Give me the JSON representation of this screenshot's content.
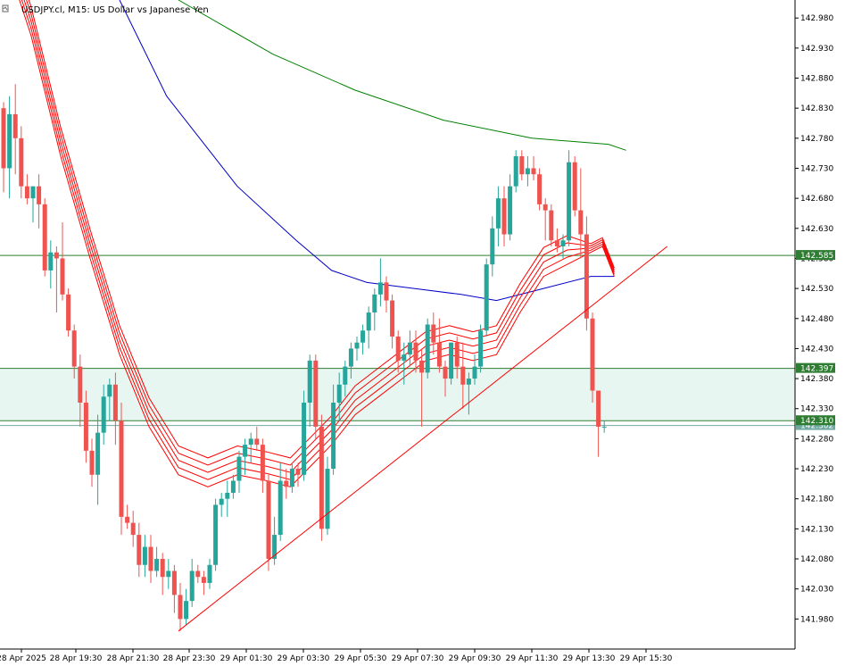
{
  "header": {
    "symbol_label": "USDJPY.cl, M15:",
    "description": "US Dollar vs Japanese Yen"
  },
  "colors": {
    "background": "#ffffff",
    "bull_candle": "#26a69a",
    "bear_candle": "#ef5350",
    "ribbon": "#ff0000",
    "ma_blue": "#0000c8",
    "ma_green": "#008000",
    "trendline": "#ff0000",
    "level_line": "#2e7d32",
    "zone_fill": "#e8f6f2",
    "bid_line": "#6fa8a0"
  },
  "chart_data": {
    "type": "candlestick",
    "title": "USDJPY.cl, M15: US Dollar vs Japanese Yen",
    "ylim": [
      141.93,
      143.01
    ],
    "y_ticks": [
      142.98,
      142.93,
      142.88,
      142.83,
      142.78,
      142.73,
      142.68,
      142.63,
      142.58,
      142.53,
      142.48,
      142.43,
      142.38,
      142.33,
      142.28,
      142.23,
      142.18,
      142.13,
      142.08,
      142.03,
      141.98
    ],
    "x_ticks": [
      "28 Apr 2025",
      "28 Apr 19:30",
      "28 Apr 21:30",
      "28 Apr 23:30",
      "29 Apr 01:30",
      "29 Apr 03:30",
      "29 Apr 05:30",
      "29 Apr 07:30",
      "29 Apr 09:30",
      "29 Apr 11:30",
      "29 Apr 13:30",
      "29 Apr 15:30"
    ],
    "candles": [
      [
        142.83,
        142.84,
        142.69,
        142.73
      ],
      [
        142.73,
        142.85,
        142.68,
        142.82
      ],
      [
        142.82,
        142.87,
        142.72,
        142.78
      ],
      [
        142.78,
        142.8,
        142.68,
        142.7
      ],
      [
        142.7,
        142.72,
        142.67,
        142.68
      ],
      [
        142.68,
        142.7,
        142.64,
        142.7
      ],
      [
        142.7,
        142.72,
        142.63,
        142.67
      ],
      [
        142.67,
        142.68,
        142.55,
        142.56
      ],
      [
        142.56,
        142.61,
        142.53,
        142.59
      ],
      [
        142.59,
        142.6,
        142.49,
        142.58
      ],
      [
        142.58,
        142.64,
        142.51,
        142.52
      ],
      [
        142.52,
        142.53,
        142.45,
        142.46
      ],
      [
        142.46,
        142.47,
        142.38,
        142.4
      ],
      [
        142.4,
        142.42,
        142.3,
        142.34
      ],
      [
        142.34,
        142.36,
        142.24,
        142.26
      ],
      [
        142.26,
        142.28,
        142.2,
        142.22
      ],
      [
        142.22,
        142.32,
        142.17,
        142.29
      ],
      [
        142.29,
        142.37,
        142.27,
        142.35
      ],
      [
        142.35,
        142.38,
        142.31,
        142.37
      ],
      [
        142.37,
        142.39,
        142.27,
        142.31
      ],
      [
        142.31,
        142.34,
        142.12,
        142.15
      ],
      [
        142.15,
        142.17,
        142.13,
        142.14
      ],
      [
        142.14,
        142.16,
        142.1,
        142.12
      ],
      [
        142.12,
        142.14,
        142.05,
        142.07
      ],
      [
        142.07,
        142.12,
        142.05,
        142.1
      ],
      [
        142.1,
        142.12,
        142.04,
        142.06
      ],
      [
        142.06,
        142.1,
        142.05,
        142.08
      ],
      [
        142.08,
        142.09,
        142.02,
        142.05
      ],
      [
        142.05,
        142.08,
        142.03,
        142.06
      ],
      [
        142.06,
        142.07,
        141.99,
        142.02
      ],
      [
        142.02,
        142.04,
        141.96,
        141.98
      ],
      [
        141.98,
        142.03,
        141.97,
        142.01
      ],
      [
        142.01,
        142.08,
        142.0,
        142.06
      ],
      [
        142.06,
        142.07,
        142.04,
        142.05
      ],
      [
        142.05,
        142.06,
        142.02,
        142.04
      ],
      [
        142.04,
        142.08,
        142.03,
        142.07
      ],
      [
        142.07,
        142.18,
        142.06,
        142.17
      ],
      [
        142.17,
        142.19,
        142.15,
        142.18
      ],
      [
        142.18,
        142.21,
        142.15,
        142.19
      ],
      [
        142.19,
        142.22,
        142.18,
        142.21
      ],
      [
        142.21,
        142.26,
        142.19,
        142.25
      ],
      [
        142.25,
        142.28,
        142.22,
        142.27
      ],
      [
        142.27,
        142.29,
        142.24,
        142.28
      ],
      [
        142.28,
        142.3,
        142.26,
        142.27
      ],
      [
        142.27,
        142.28,
        142.19,
        142.21
      ],
      [
        142.21,
        142.22,
        142.06,
        142.08
      ],
      [
        142.08,
        142.15,
        142.07,
        142.12
      ],
      [
        142.12,
        142.24,
        142.11,
        142.21
      ],
      [
        142.21,
        142.23,
        142.18,
        142.2
      ],
      [
        142.2,
        142.24,
        142.19,
        142.23
      ],
      [
        142.23,
        142.24,
        142.2,
        142.22
      ],
      [
        142.22,
        142.36,
        142.21,
        142.34
      ],
      [
        142.34,
        142.42,
        142.3,
        142.41
      ],
      [
        142.41,
        142.42,
        142.28,
        142.3
      ],
      [
        142.3,
        142.32,
        142.11,
        142.13
      ],
      [
        142.13,
        142.25,
        142.12,
        142.23
      ],
      [
        142.23,
        142.37,
        142.22,
        142.34
      ],
      [
        142.34,
        142.39,
        142.31,
        142.37
      ],
      [
        142.37,
        142.41,
        142.35,
        142.4
      ],
      [
        142.4,
        142.44,
        142.38,
        142.43
      ],
      [
        142.43,
        142.45,
        142.41,
        142.44
      ],
      [
        142.44,
        142.47,
        142.42,
        142.46
      ],
      [
        142.46,
        142.5,
        142.43,
        142.49
      ],
      [
        142.49,
        142.53,
        142.46,
        142.52
      ],
      [
        142.52,
        142.58,
        142.5,
        142.54
      ],
      [
        142.54,
        142.55,
        142.49,
        142.51
      ],
      [
        142.51,
        142.52,
        142.43,
        142.45
      ],
      [
        142.45,
        142.46,
        142.39,
        142.41
      ],
      [
        142.41,
        142.44,
        142.37,
        142.42
      ],
      [
        142.42,
        142.46,
        142.4,
        142.44
      ],
      [
        142.44,
        142.46,
        142.39,
        142.41
      ],
      [
        142.41,
        142.43,
        142.3,
        142.39
      ],
      [
        142.39,
        142.48,
        142.38,
        142.47
      ],
      [
        142.47,
        142.49,
        142.42,
        142.44
      ],
      [
        142.44,
        142.48,
        142.39,
        142.4
      ],
      [
        142.4,
        142.41,
        142.35,
        142.38
      ],
      [
        142.38,
        142.44,
        142.37,
        142.44
      ],
      [
        142.44,
        142.45,
        142.38,
        142.4
      ],
      [
        142.4,
        142.44,
        142.33,
        142.37
      ],
      [
        142.37,
        142.39,
        142.32,
        142.38
      ],
      [
        142.38,
        142.42,
        142.37,
        142.4
      ],
      [
        142.4,
        142.47,
        142.39,
        142.46
      ],
      [
        142.46,
        142.58,
        142.45,
        142.57
      ],
      [
        142.57,
        142.65,
        142.55,
        142.63
      ],
      [
        142.63,
        142.7,
        142.6,
        142.68
      ],
      [
        142.68,
        142.7,
        142.6,
        142.62
      ],
      [
        142.62,
        142.72,
        142.61,
        142.7
      ],
      [
        142.7,
        142.76,
        142.69,
        142.75
      ],
      [
        142.75,
        142.76,
        142.71,
        142.72
      ],
      [
        142.72,
        142.75,
        142.7,
        142.73
      ],
      [
        142.73,
        142.75,
        142.71,
        142.72
      ],
      [
        142.72,
        142.73,
        142.66,
        142.67
      ],
      [
        142.67,
        142.68,
        142.61,
        142.66
      ],
      [
        142.66,
        142.67,
        142.6,
        142.61
      ],
      [
        142.61,
        142.63,
        142.59,
        142.6
      ],
      [
        142.6,
        142.62,
        142.58,
        142.61
      ],
      [
        142.61,
        142.76,
        142.6,
        142.74
      ],
      [
        142.74,
        142.75,
        142.65,
        142.66
      ],
      [
        142.66,
        142.73,
        142.58,
        142.62
      ],
      [
        142.62,
        142.65,
        142.46,
        142.48
      ],
      [
        142.48,
        142.49,
        142.34,
        142.36
      ],
      [
        142.36,
        142.36,
        142.25,
        142.3
      ],
      [
        142.3,
        142.31,
        142.29,
        142.3
      ]
    ],
    "horizontal_levels": [
      142.585,
      142.397,
      142.31
    ],
    "level_labels": [
      "142.585",
      "142.397",
      "142.310"
    ],
    "bid_price": 142.302,
    "bid_label": "142.302",
    "zone": [
      142.397,
      142.31
    ],
    "trendline": [
      [
        30,
        141.96
      ],
      [
        113,
        142.6
      ]
    ],
    "ma_green": [
      [
        30,
        143.01
      ],
      [
        46,
        142.92
      ],
      [
        60,
        142.86
      ],
      [
        75,
        142.81
      ],
      [
        90,
        142.78
      ],
      [
        103,
        142.77
      ],
      [
        106,
        142.76
      ]
    ],
    "ma_blue": [
      [
        20,
        143.01
      ],
      [
        28,
        142.85
      ],
      [
        40,
        142.7
      ],
      [
        50,
        142.61
      ],
      [
        56,
        142.56
      ],
      [
        62,
        142.54
      ],
      [
        70,
        142.53
      ],
      [
        78,
        142.52
      ],
      [
        84,
        142.51
      ],
      [
        92,
        142.53
      ],
      [
        100,
        142.55
      ],
      [
        104,
        142.55
      ]
    ],
    "ribbon": [
      [
        0,
        143.1
      ],
      [
        5,
        142.95
      ],
      [
        10,
        142.75
      ],
      [
        15,
        142.58
      ],
      [
        20,
        142.42
      ],
      [
        25,
        142.3
      ],
      [
        30,
        142.22
      ],
      [
        35,
        142.2
      ],
      [
        40,
        142.22
      ],
      [
        45,
        142.21
      ],
      [
        49,
        142.2
      ],
      [
        52,
        142.23
      ],
      [
        56,
        142.27
      ],
      [
        60,
        142.32
      ],
      [
        64,
        142.35
      ],
      [
        68,
        142.38
      ],
      [
        72,
        142.41
      ],
      [
        76,
        142.42
      ],
      [
        80,
        142.41
      ],
      [
        84,
        142.42
      ],
      [
        88,
        142.49
      ],
      [
        92,
        142.55
      ],
      [
        96,
        142.57
      ],
      [
        100,
        142.59
      ],
      [
        102,
        142.6
      ],
      [
        104,
        142.55
      ]
    ],
    "ribbon_offsets": [
      0,
      0.012,
      0.024,
      0.036,
      0.048
    ],
    "grid": false
  }
}
